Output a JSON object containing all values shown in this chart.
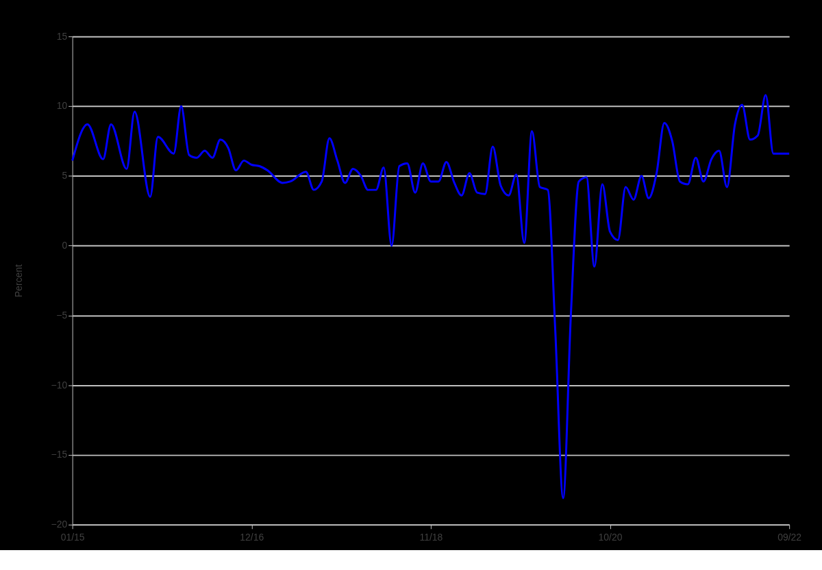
{
  "chart_data": {
    "type": "line",
    "ylabel": "Percent",
    "x": [
      "2015-01",
      "2015-03",
      "2015-05",
      "2015-06",
      "2015-08",
      "2015-09",
      "2015-11",
      "2015-12",
      "2016-02",
      "2016-03",
      "2016-04",
      "2016-05",
      "2016-06",
      "2016-07",
      "2016-08",
      "2016-09",
      "2016-10",
      "2016-11",
      "2016-12",
      "2017-01",
      "2017-02",
      "2017-04",
      "2017-05",
      "2017-07",
      "2017-08",
      "2017-09",
      "2017-10",
      "2017-11",
      "2017-12",
      "2018-01",
      "2018-02",
      "2018-03",
      "2018-04",
      "2018-05",
      "2018-06",
      "2018-07",
      "2018-08",
      "2018-09",
      "2018-10",
      "2018-11",
      "2018-12",
      "2019-01",
      "2019-02",
      "2019-03",
      "2019-04",
      "2019-05",
      "2019-06",
      "2019-07",
      "2019-08",
      "2019-09",
      "2019-10",
      "2019-11",
      "2019-12",
      "2020-01",
      "2020-02",
      "2020-03",
      "2020-04",
      "2020-05",
      "2020-06",
      "2020-07",
      "2020-08",
      "2020-09",
      "2020-10",
      "2020-11",
      "2020-12",
      "2021-01",
      "2021-02",
      "2021-03",
      "2021-04",
      "2021-05",
      "2021-06",
      "2021-07",
      "2021-08",
      "2021-09",
      "2021-10",
      "2021-11",
      "2021-12",
      "2022-01",
      "2022-02",
      "2022-03",
      "2022-04",
      "2022-05",
      "2022-06",
      "2022-07",
      "2022-08",
      "2022-09"
    ],
    "series": [
      {
        "color": "#0000ff",
        "values": [
          6.1,
          8.7,
          6.2,
          8.7,
          5.5,
          9.6,
          3.5,
          7.8,
          6.6,
          10.0,
          6.5,
          6.3,
          6.8,
          6.3,
          7.6,
          7.0,
          5.4,
          6.1,
          5.8,
          5.7,
          5.4,
          4.5,
          4.6,
          5.3,
          4.0,
          4.6,
          7.7,
          6.1,
          4.5,
          5.5,
          5.0,
          4.0,
          4.0,
          5.6,
          0.0,
          5.7,
          5.9,
          3.8,
          5.9,
          4.6,
          4.6,
          6.0,
          4.5,
          3.6,
          5.2,
          3.8,
          3.7,
          7.1,
          4.3,
          3.6,
          5.1,
          0.2,
          8.2,
          4.2,
          4.0,
          -6.0,
          -18.1,
          -5.0,
          4.6,
          4.9,
          -1.5,
          4.4,
          1.0,
          0.4,
          4.2,
          3.3,
          5.0,
          3.4,
          5.2,
          8.8,
          7.5,
          4.6,
          4.4,
          6.3,
          4.6,
          6.2,
          6.8,
          4.2,
          8.7,
          10.1,
          7.6,
          7.9,
          10.8,
          6.6,
          6.6,
          6.6
        ]
      }
    ],
    "xlim": [
      "2015-01",
      "2022-09"
    ],
    "xticks": [
      {
        "value": "2015-01",
        "label": "01/15"
      },
      {
        "value": "2016-12",
        "label": "12/16"
      },
      {
        "value": "2018-11",
        "label": "11/18"
      },
      {
        "value": "2020-10",
        "label": "10/20"
      },
      {
        "value": "2022-09",
        "label": "09/22"
      }
    ],
    "ylim": [
      -20,
      15
    ],
    "yticks": [
      -20,
      -15,
      -10,
      -5,
      0,
      5,
      10,
      15
    ],
    "grid": "y",
    "line_style": "solid",
    "marker": "none"
  }
}
